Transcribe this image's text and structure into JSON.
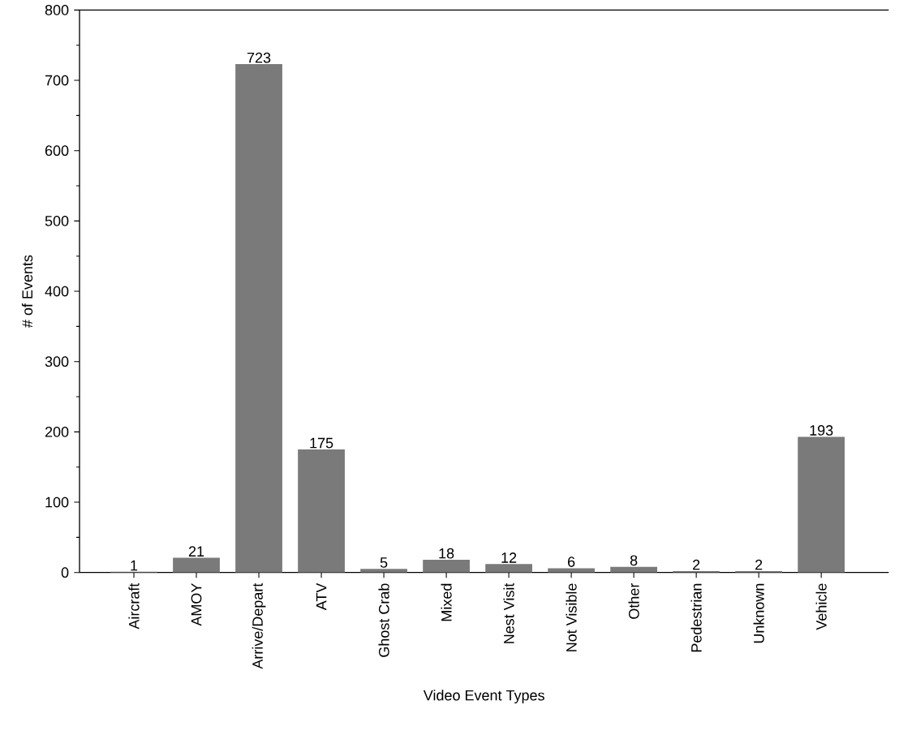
{
  "chart_data": {
    "type": "bar",
    "xlabel": "Video Event Types",
    "ylabel": "# of Events",
    "categories": [
      "Aircraft",
      "AMOY",
      "Arrive/Depart",
      "ATV",
      "Ghost Crab",
      "Mixed",
      "Nest Visit",
      "Not Visible",
      "Other",
      "Pedestrian",
      "Unknown",
      "Vehicle"
    ],
    "values": [
      1,
      21,
      723,
      175,
      5,
      18,
      12,
      6,
      8,
      2,
      2,
      193
    ],
    "color": "#7a7a7a",
    "ylim": [
      0,
      800
    ],
    "yticks": [
      0,
      100,
      200,
      300,
      400,
      500,
      600,
      700,
      800
    ],
    "data_labels": true
  }
}
